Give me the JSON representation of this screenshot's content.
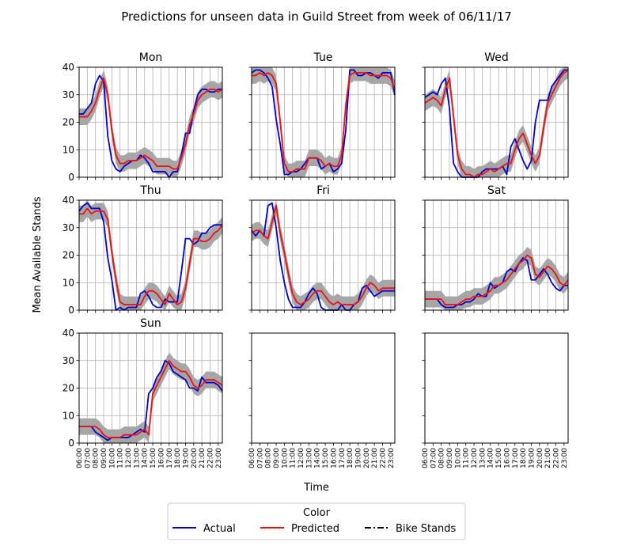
{
  "title": "Predictions for unseen data in Guild Street from week of 06/11/17",
  "xlabel": "Time",
  "ylabel": "Mean Available Stands",
  "legend": {
    "title": "Color",
    "items": [
      {
        "label": "Actual",
        "color": "#0000cc",
        "style": "solid"
      },
      {
        "label": "Predicted",
        "color": "#ee1111",
        "style": "solid"
      },
      {
        "label": "Bike Stands",
        "color": "#000000",
        "style": "dashdot"
      }
    ]
  },
  "colors": {
    "actual": "#0000cc",
    "predicted": "#ee1111",
    "band": "#a6a6a6",
    "grid": "#b0b0b0"
  },
  "chart_data": {
    "type": "line",
    "grid": true,
    "ylim": [
      0,
      40
    ],
    "yticks": [
      0,
      10,
      20,
      30,
      40
    ],
    "xlim": [
      6,
      23.5
    ],
    "xticks": [
      6,
      7,
      8,
      9,
      10,
      11,
      12,
      13,
      14,
      15,
      16,
      17,
      18,
      19,
      20,
      21,
      22,
      23
    ],
    "xticklabels": [
      "06:00",
      "07:00",
      "08:00",
      "09:00",
      "10:00",
      "11:00",
      "12:00",
      "13:00",
      "14:00",
      "15:00",
      "16:00",
      "17:00",
      "18:00",
      "19:00",
      "20:00",
      "21:00",
      "22:00",
      "23:00"
    ],
    "x": [
      6,
      6.5,
      7,
      7.5,
      8,
      8.5,
      9,
      9.5,
      10,
      10.5,
      11,
      11.5,
      12,
      12.5,
      13,
      13.5,
      14,
      14.5,
      15,
      15.5,
      16,
      16.5,
      17,
      17.5,
      18,
      18.5,
      19,
      19.5,
      20,
      20.5,
      21,
      21.5,
      22,
      22.5,
      23,
      23.5
    ],
    "band_halfwidth": 3,
    "panels": [
      {
        "title": "Mon",
        "actual": [
          23,
          23,
          25,
          27,
          34,
          37,
          35,
          15,
          6,
          3,
          2,
          4,
          5,
          6,
          6,
          8,
          7,
          5,
          2,
          2,
          2,
          2,
          0,
          2,
          2,
          8,
          16,
          16,
          24,
          30,
          32,
          32,
          31,
          31,
          32,
          32
        ],
        "predicted": [
          22,
          22,
          22,
          24,
          27,
          32,
          36,
          30,
          17,
          8,
          5,
          5,
          6,
          6,
          6,
          7,
          8,
          7,
          6,
          4,
          4,
          4,
          4,
          3,
          3,
          7,
          12,
          19,
          23,
          28,
          30,
          31,
          32,
          32,
          31,
          32
        ]
      },
      {
        "title": "Tue",
        "actual": [
          38,
          39,
          39,
          38,
          36,
          33,
          21,
          12,
          1,
          1,
          2,
          2,
          3,
          5,
          7,
          7,
          7,
          3,
          4,
          5,
          2,
          3,
          5,
          17,
          39,
          39,
          37,
          37,
          38,
          38,
          37,
          36,
          38,
          38,
          38,
          30
        ],
        "predicted": [
          37,
          37,
          38,
          37,
          38,
          37,
          34,
          20,
          5,
          2,
          2,
          3,
          3,
          3,
          7,
          7,
          7,
          6,
          4,
          5,
          4,
          4,
          8,
          26,
          37,
          38,
          38,
          38,
          38,
          37,
          37,
          37,
          37,
          37,
          36,
          32
        ]
      },
      {
        "title": "Wed",
        "actual": [
          29,
          30,
          31,
          30,
          34,
          36,
          25,
          5,
          2,
          0,
          0,
          0,
          0,
          0,
          2,
          3,
          3,
          3,
          3,
          4,
          1,
          11,
          14,
          10,
          6,
          3,
          6,
          20,
          28,
          28,
          28,
          33,
          35,
          37,
          39,
          39
        ],
        "predicted": [
          27,
          28,
          29,
          28,
          26,
          32,
          36,
          22,
          8,
          3,
          1,
          1,
          0,
          1,
          1,
          2,
          3,
          2,
          3,
          4,
          5,
          5,
          10,
          14,
          16,
          12,
          8,
          5,
          8,
          18,
          27,
          30,
          33,
          36,
          38,
          39
        ]
      },
      {
        "title": "Thu",
        "actual": [
          36,
          38,
          39,
          37,
          37,
          37,
          32,
          19,
          11,
          0,
          1,
          0,
          1,
          1,
          1,
          6,
          7,
          5,
          2,
          1,
          1,
          4,
          3,
          3,
          3,
          14,
          26,
          26,
          24,
          25,
          28,
          28,
          30,
          31,
          31,
          31
        ],
        "predicted": [
          35,
          35,
          37,
          35,
          36,
          36,
          36,
          33,
          21,
          11,
          3,
          2,
          2,
          2,
          2,
          2,
          5,
          7,
          7,
          6,
          4,
          2,
          6,
          4,
          2,
          3,
          8,
          17,
          26,
          26,
          25,
          25,
          26,
          28,
          29,
          31
        ]
      },
      {
        "title": "Fri",
        "actual": [
          29,
          27,
          29,
          27,
          38,
          39,
          30,
          18,
          10,
          4,
          1,
          1,
          1,
          3,
          6,
          8,
          6,
          1,
          0,
          0,
          0,
          0,
          2,
          0,
          0,
          2,
          3,
          8,
          9,
          7,
          5,
          6,
          7,
          7,
          7,
          7
        ],
        "predicted": [
          28,
          29,
          29,
          27,
          26,
          32,
          38,
          28,
          21,
          13,
          6,
          3,
          2,
          3,
          4,
          6,
          7,
          7,
          5,
          3,
          2,
          3,
          2,
          2,
          2,
          2,
          3,
          5,
          8,
          10,
          9,
          7,
          8,
          8,
          8,
          8
        ]
      },
      {
        "title": "Sat",
        "actual": [
          4,
          4,
          4,
          4,
          2,
          1,
          1,
          1,
          2,
          2,
          3,
          3,
          4,
          6,
          5,
          5,
          10,
          8,
          9,
          10,
          14,
          15,
          14,
          17,
          19,
          18,
          11,
          11,
          13,
          15,
          13,
          10,
          8,
          7,
          9,
          9
        ],
        "predicted": [
          4,
          4,
          4,
          4,
          4,
          2,
          2,
          2,
          2,
          3,
          4,
          4,
          5,
          5,
          5,
          6,
          7,
          9,
          9,
          10,
          11,
          13,
          15,
          17,
          18,
          20,
          19,
          13,
          12,
          14,
          16,
          15,
          13,
          10,
          9,
          11
        ]
      },
      {
        "title": "Sun",
        "actual": [
          6,
          6,
          6,
          6,
          4,
          3,
          2,
          1,
          2,
          2,
          2,
          2,
          2,
          3,
          4,
          5,
          4,
          18,
          20,
          24,
          26,
          30,
          29,
          26,
          25,
          24,
          23,
          20,
          20,
          19,
          24,
          22,
          22,
          22,
          21,
          19
        ],
        "predicted": [
          6,
          6,
          6,
          6,
          6,
          5,
          3,
          2,
          2,
          2,
          2,
          3,
          3,
          3,
          3,
          4,
          5,
          3,
          18,
          21,
          24,
          27,
          30,
          28,
          27,
          26,
          26,
          24,
          21,
          20,
          21,
          23,
          23,
          23,
          22,
          21
        ]
      },
      {
        "title": "",
        "actual": [],
        "predicted": []
      },
      {
        "title": "",
        "actual": [],
        "predicted": []
      }
    ]
  }
}
